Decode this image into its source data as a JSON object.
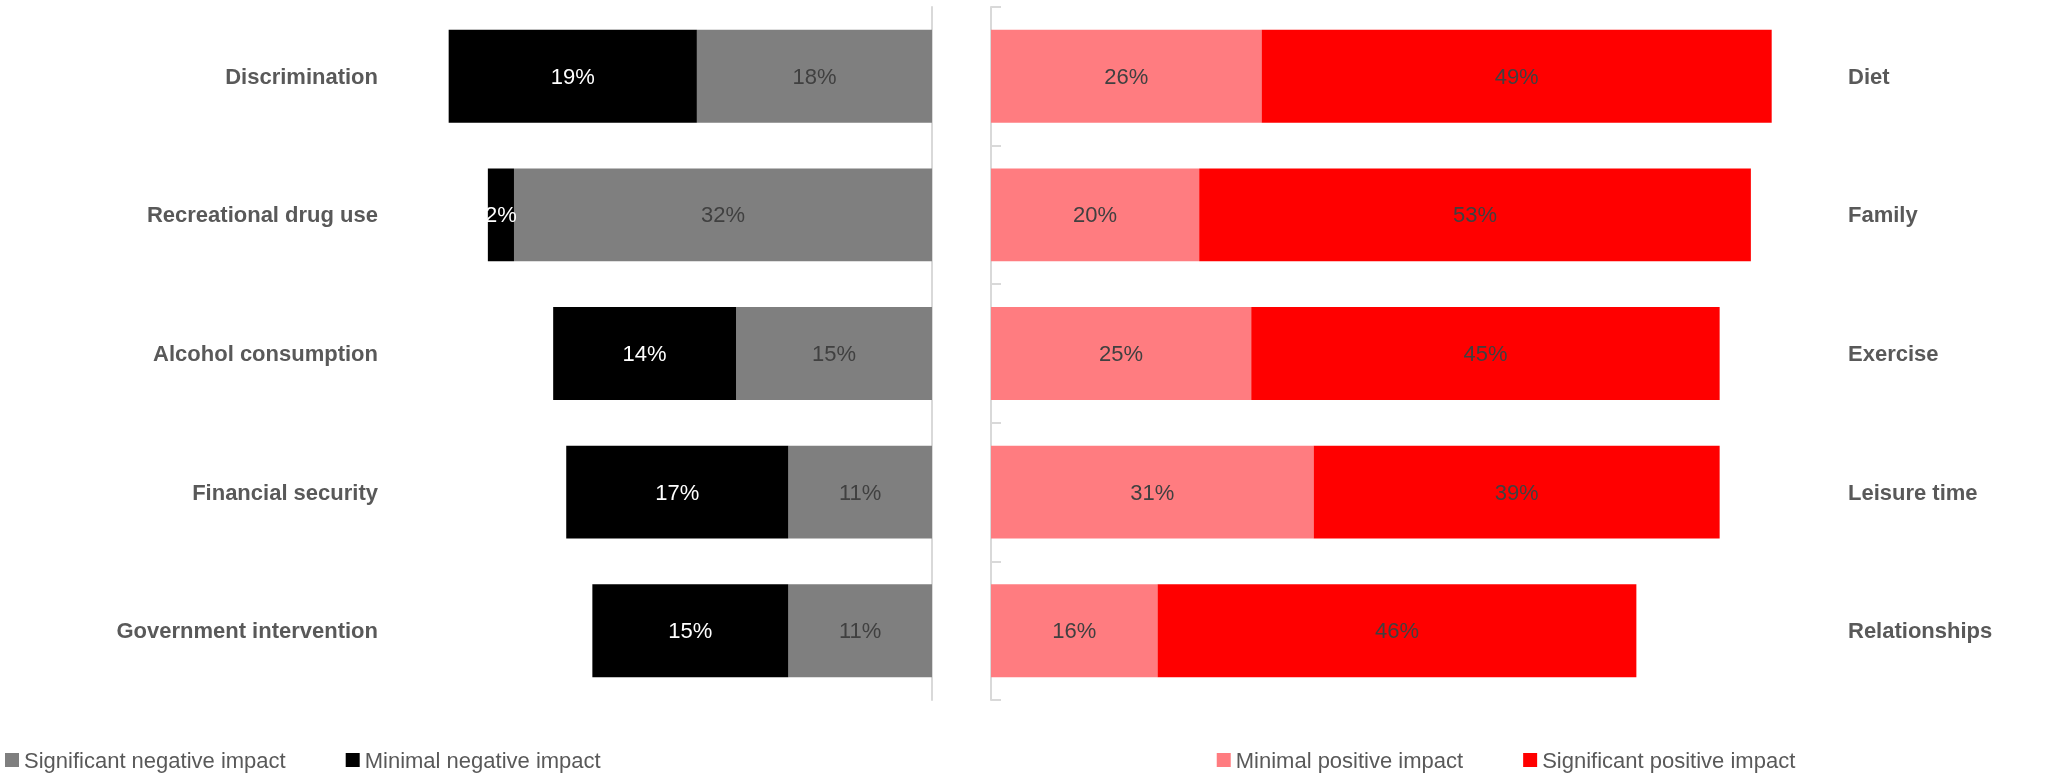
{
  "chart_data": [
    {
      "type": "bar",
      "orientation": "horizontal",
      "stacked": true,
      "categories": [
        "Discrimination",
        "Recreational drug use",
        "Alcohol consumption",
        "Financial security",
        "Government intervention"
      ],
      "legend": "bottom left",
      "series": [
        {
          "name": "Significant negative impact",
          "color": "#7f7f7f",
          "values": [
            18,
            32,
            15,
            11,
            11
          ],
          "value_labels": [
            "18%",
            "32%",
            "15%",
            "11%",
            "11%"
          ]
        },
        {
          "name": "Minimal negative impact",
          "color": "#000000",
          "values": [
            19,
            2,
            14,
            17,
            15
          ],
          "value_labels": [
            "19%",
            "2%",
            "14%",
            "17%",
            "15%"
          ]
        }
      ]
    },
    {
      "type": "bar",
      "orientation": "horizontal",
      "stacked": true,
      "categories": [
        "Diet",
        "Family",
        "Exercise",
        "Leisure time",
        "Relationships"
      ],
      "legend": "bottom",
      "series": [
        {
          "name": "Minimal positive impact",
          "color": "#ff7c80",
          "values": [
            26,
            20,
            25,
            31,
            16
          ],
          "value_labels": [
            "26%",
            "20%",
            "25%",
            "31%",
            "16%"
          ]
        },
        {
          "name": "Significant positive impact",
          "color": "#ff0000",
          "values": [
            49,
            53,
            45,
            39,
            46
          ],
          "value_labels": [
            "49%",
            "53%",
            "45%",
            "39%",
            "46%"
          ]
        }
      ]
    }
  ]
}
